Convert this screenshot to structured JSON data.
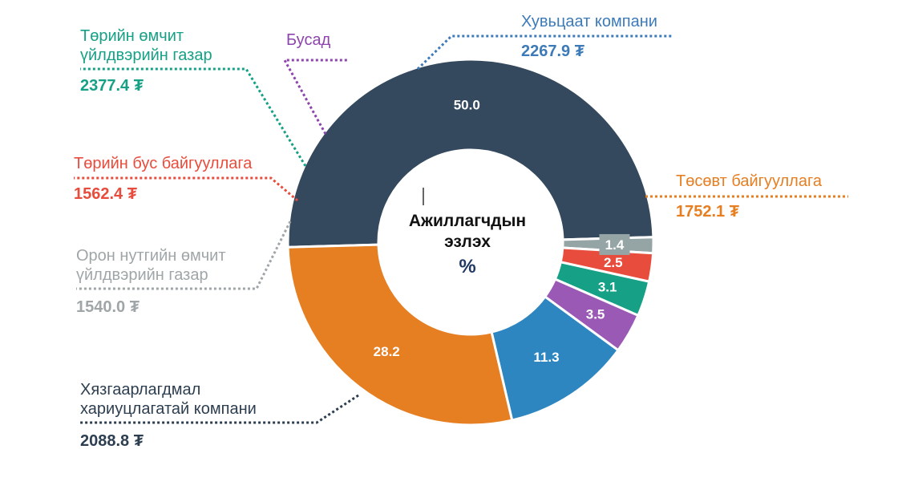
{
  "chart_data": {
    "type": "pie",
    "center_label_lines": [
      "Ажиллагчдын",
      "эзлэх"
    ],
    "center_unit": "%",
    "slices": [
      {
        "name": "Хязгаарлагдмал хариуцлагатай компани",
        "name_lines": [
          "Хязгаарлагдмал",
          "хариуцлагатай компани"
        ],
        "percent": 50.0,
        "percent_label": "50.0",
        "amount": "2088.8 ₮",
        "color": "#34495e"
      },
      {
        "name": "Орон нутгийн өмчит үйлдвэрийн газар",
        "name_lines": [
          "Орон нутгийн өмчит",
          "үйлдвэрийн газар"
        ],
        "percent": 1.4,
        "percent_label": "1.4",
        "amount": "1540.0 ₮",
        "color": "#95a5a6"
      },
      {
        "name": "Төрийн бус байгууллага",
        "name_lines": [
          "Төрийн бус байгууллага"
        ],
        "percent": 2.5,
        "percent_label": "2.5",
        "amount": "1562.4 ₮",
        "color": "#e74c3c"
      },
      {
        "name": "Төрийн өмчит үйлдвэрийн газар",
        "name_lines": [
          "Төрийн өмчит",
          "үйлдвэрийн газар"
        ],
        "percent": 3.1,
        "percent_label": "3.1",
        "amount": "2377.4 ₮",
        "color": "#16a085"
      },
      {
        "name": "Бусад",
        "name_lines": [
          "Бусад"
        ],
        "percent": 3.5,
        "percent_label": "3.5",
        "amount": "",
        "color": "#9b59b6"
      },
      {
        "name": "Хувьцаат компани",
        "name_lines": [
          "Хувьцаат компани"
        ],
        "percent": 11.3,
        "percent_label": "11.3",
        "amount": "2267.9 ₮",
        "color": "#2e86c1"
      },
      {
        "name": "Төсөвт байгууллага",
        "name_lines": [
          "Төсөвт байгууллага"
        ],
        "percent": 28.2,
        "percent_label": "28.2",
        "amount": "1752.1 ₮",
        "color": "#e67e22"
      }
    ]
  }
}
